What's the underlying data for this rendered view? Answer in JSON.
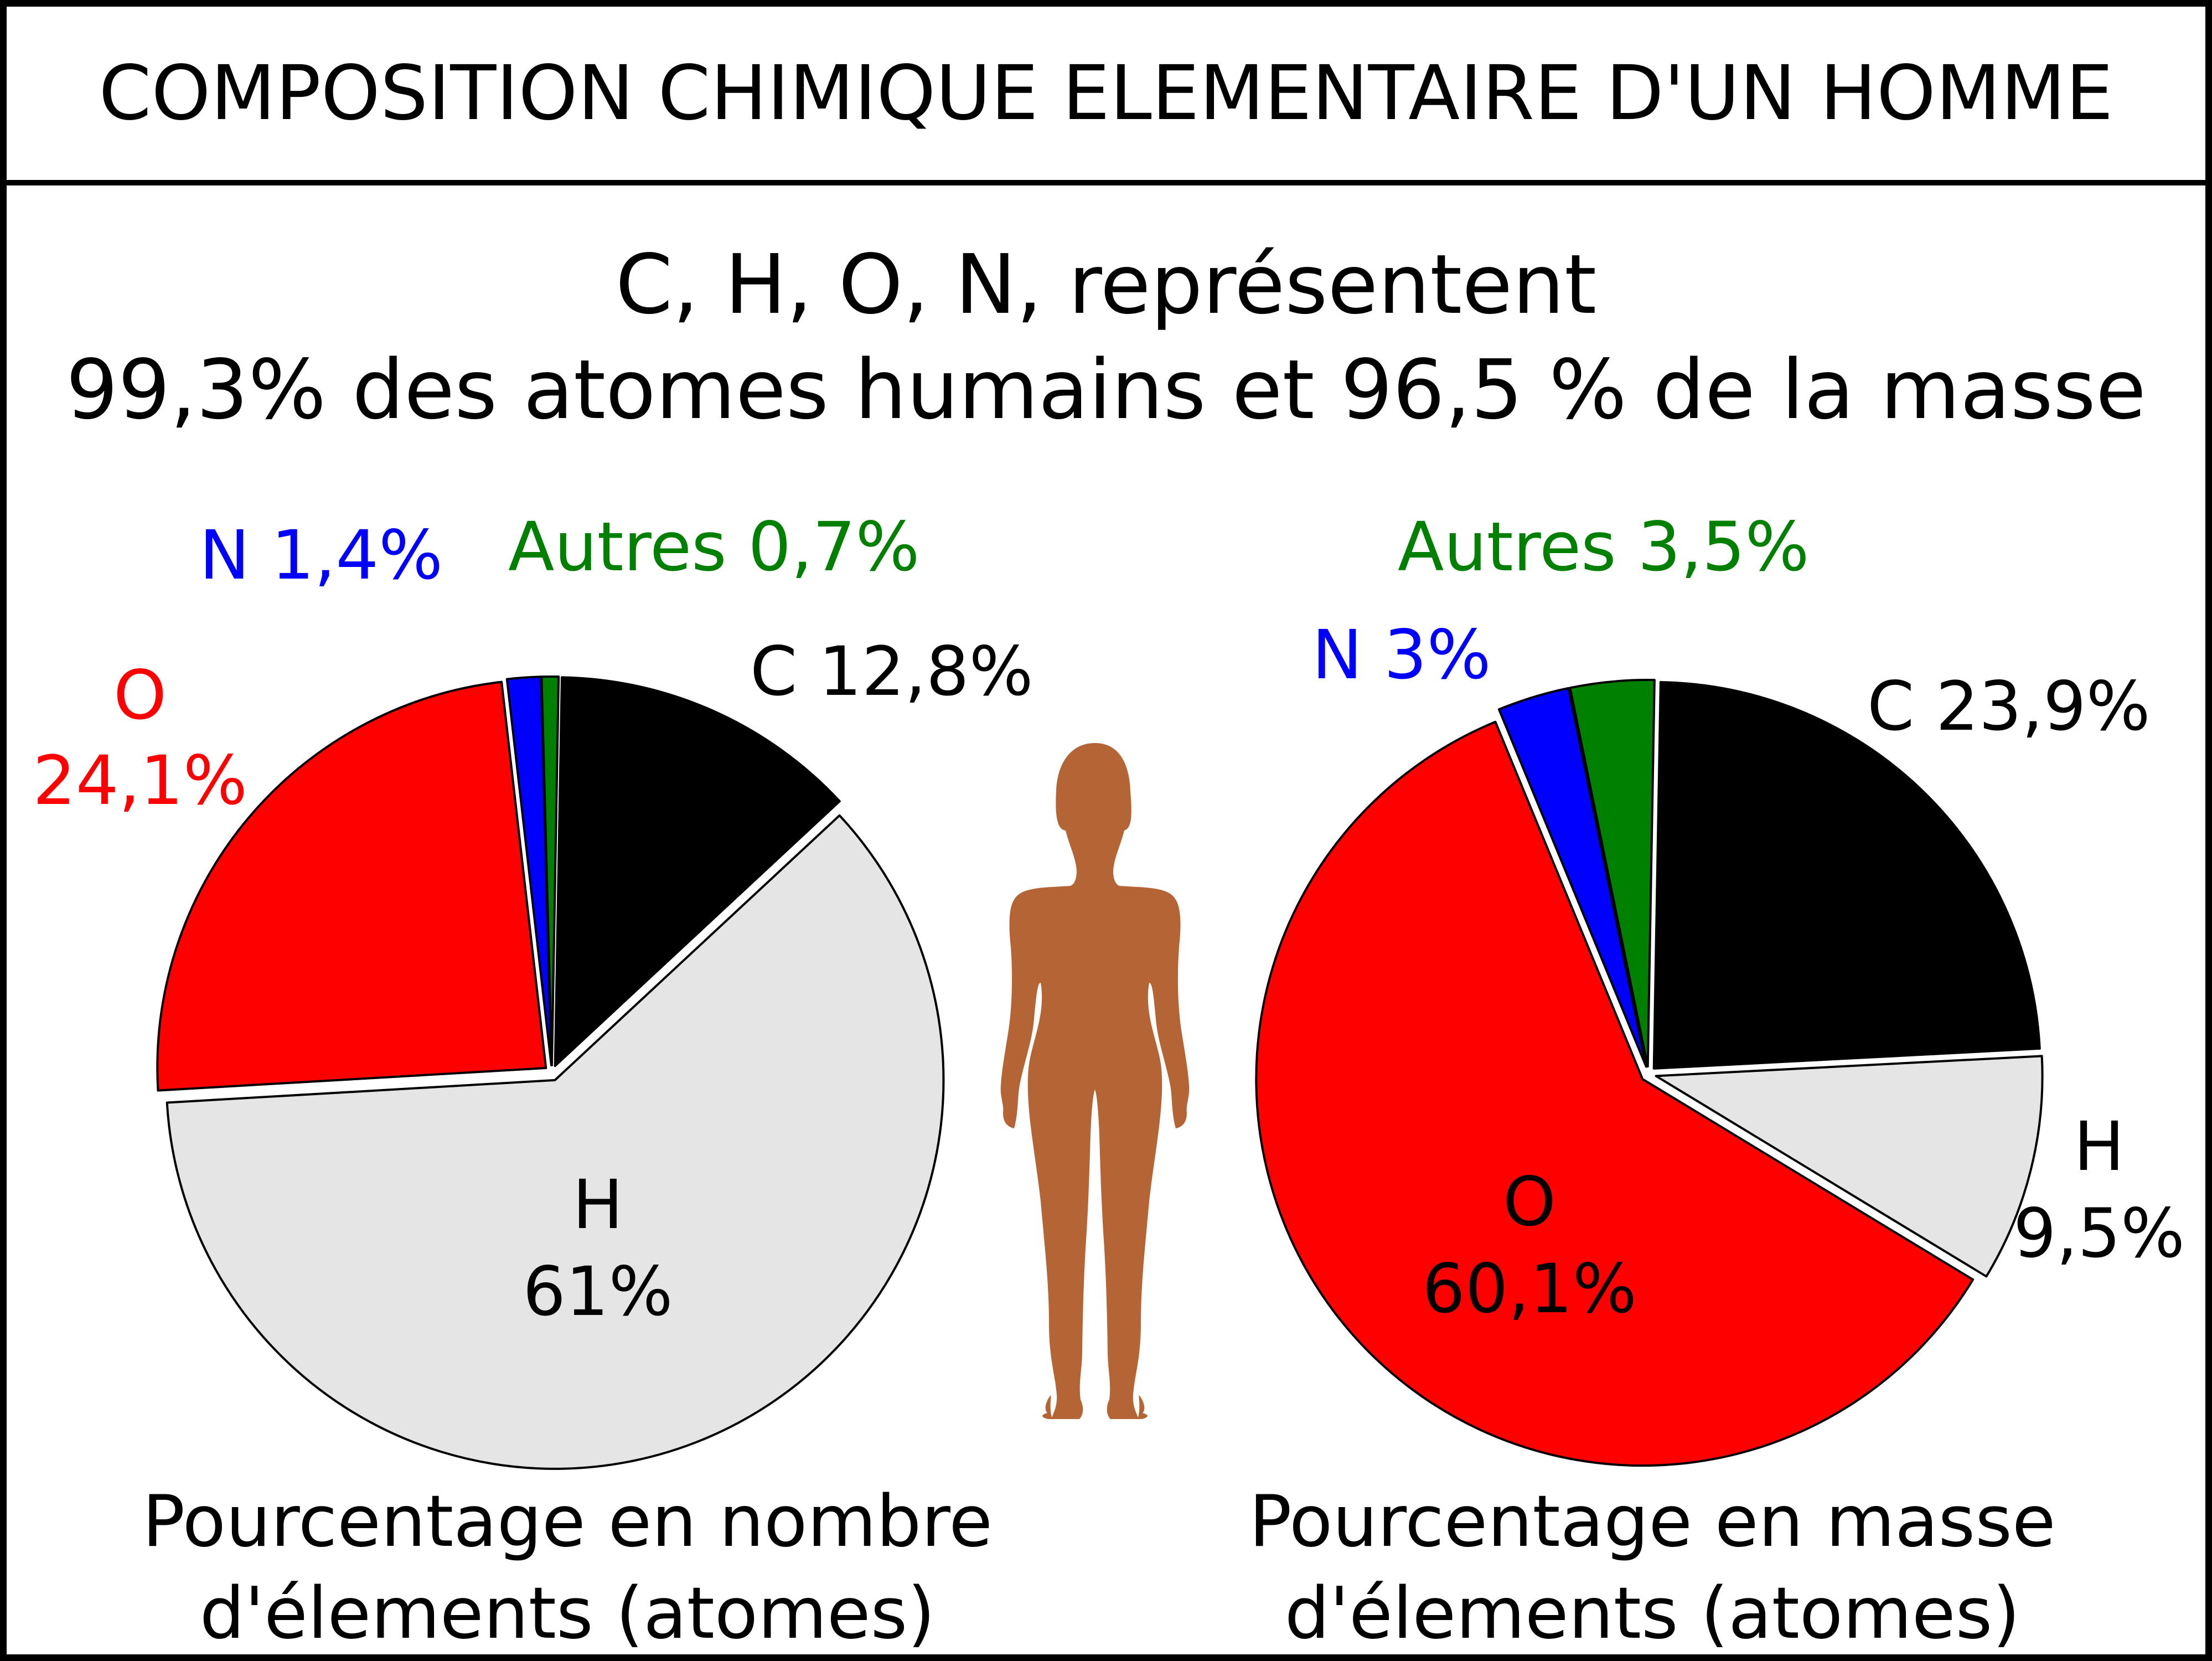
{
  "header": {
    "title": "COMPOSITION CHIMIQUE ELEMENTAIRE D'UN HOMME",
    "subtitle_line1": "C, H, O, N, représentent",
    "subtitle_line2": "99,3% des atomes humains et 96,5 % de la masse"
  },
  "colors": {
    "C": "#000000",
    "H": "#e5e5e5",
    "O": "#ff0000",
    "N": "#0000ff",
    "Autres": "#008000",
    "figure": "#b56535",
    "border": "#000000"
  },
  "figure_icon": "human-silhouette-icon",
  "chart_data": [
    {
      "type": "pie",
      "caption_line1": "Pourcentage en nombre",
      "caption_line2": "d'élements (atomes)",
      "slices": [
        {
          "element": "C",
          "value": 12.8,
          "label_line1": "C 12,8%",
          "label_line2": "",
          "color": "#000000"
        },
        {
          "element": "H",
          "value": 61.0,
          "label_line1": "H",
          "label_line2": "61%",
          "color": "#e5e5e5"
        },
        {
          "element": "O",
          "value": 24.1,
          "label_line1": "O",
          "label_line2": "24,1%",
          "color": "#ff0000"
        },
        {
          "element": "N",
          "value": 1.4,
          "label_line1": "N 1,4%",
          "label_line2": "",
          "color": "#0000ff"
        },
        {
          "element": "Autres",
          "value": 0.7,
          "label_line1": "Autres 0,7%",
          "label_line2": "",
          "color": "#008000"
        }
      ]
    },
    {
      "type": "pie",
      "caption_line1": "Pourcentage en masse",
      "caption_line2": "d'élements (atomes)",
      "slices": [
        {
          "element": "C",
          "value": 23.9,
          "label_line1": "C 23,9%",
          "label_line2": "",
          "color": "#000000"
        },
        {
          "element": "H",
          "value": 9.5,
          "label_line1": "H",
          "label_line2": "9,5%",
          "color": "#e5e5e5"
        },
        {
          "element": "O",
          "value": 60.1,
          "label_line1": "O",
          "label_line2": "60,1%",
          "color": "#ff0000"
        },
        {
          "element": "N",
          "value": 3.0,
          "label_line1": "N 3%",
          "label_line2": "",
          "color": "#0000ff"
        },
        {
          "element": "Autres",
          "value": 3.5,
          "label_line1": "Autres 3,5%",
          "label_line2": "",
          "color": "#008000"
        }
      ]
    }
  ]
}
